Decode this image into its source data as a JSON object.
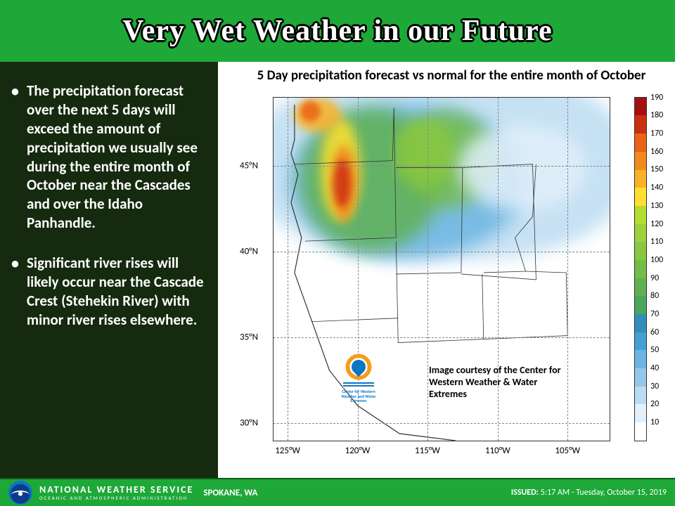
{
  "header": {
    "title": "Very Wet Weather in our Future",
    "background_color": "#1ea838",
    "title_color": "#ffffff",
    "title_outline": "#000000",
    "title_fontsize": 42
  },
  "left_panel": {
    "background_color": "#152a0e",
    "text_color": "#ffffff",
    "fontsize": 21,
    "bullets": [
      "The precipitation forecast over the next 5 days will exceed the amount of precipitation we usually see during the entire month of October near the Cascades and over the Idaho Panhandle.",
      "Significant river rises will likely occur near the Cascade Crest (Stehekin River) with minor river rises elsewhere."
    ]
  },
  "chart": {
    "title": "5 Day precipitation forecast vs normal for the entire month of October",
    "title_fontsize": 19,
    "type": "heatmap",
    "background_color": "#ffffff",
    "grid_color": "#888888",
    "axis_color": "#333333",
    "x_axis": {
      "ticks": [
        "125°W",
        "120°W",
        "115°W",
        "110°W",
        "105°W"
      ],
      "lim": [
        -127,
        -103
      ],
      "fontsize": 13
    },
    "y_axis": {
      "ticks": [
        "30°N",
        "35°N",
        "40°N",
        "45°N"
      ],
      "lim": [
        29,
        49
      ],
      "fontsize": 13
    },
    "colorbar": {
      "values": [
        10,
        20,
        30,
        40,
        50,
        60,
        70,
        80,
        90,
        100,
        110,
        120,
        130,
        140,
        150,
        160,
        170,
        180,
        190
      ],
      "colors": [
        "#ffffff",
        "#e2f0fa",
        "#bcdcf2",
        "#94c8ea",
        "#6cb5e2",
        "#459fd6",
        "#2f8fb8",
        "#4aa65a",
        "#5fb152",
        "#74bc4a",
        "#89c742",
        "#9ed23a",
        "#b3dd32",
        "#ffe030",
        "#f9b225",
        "#f28a1d",
        "#ec6315",
        "#cc2e12",
        "#a60f0f"
      ],
      "label_fontsize": 12
    },
    "credit": {
      "logo_label": "Center for Western Weather and Water Extremes",
      "text": "Image courtesy of the Center for Western Weather & Water Extremes"
    }
  },
  "footer": {
    "background_color": "#1ea838",
    "agency_line1": "NATIONAL WEATHER SERVICE",
    "agency_line2": "OCEANIC AND ATMOSPHERIC ADMINISTRATION",
    "office": "SPOKANE, WA",
    "issued_label": "ISSUED:",
    "issued_value": "5:17 AM - Tuesday, October 15, 2019"
  }
}
